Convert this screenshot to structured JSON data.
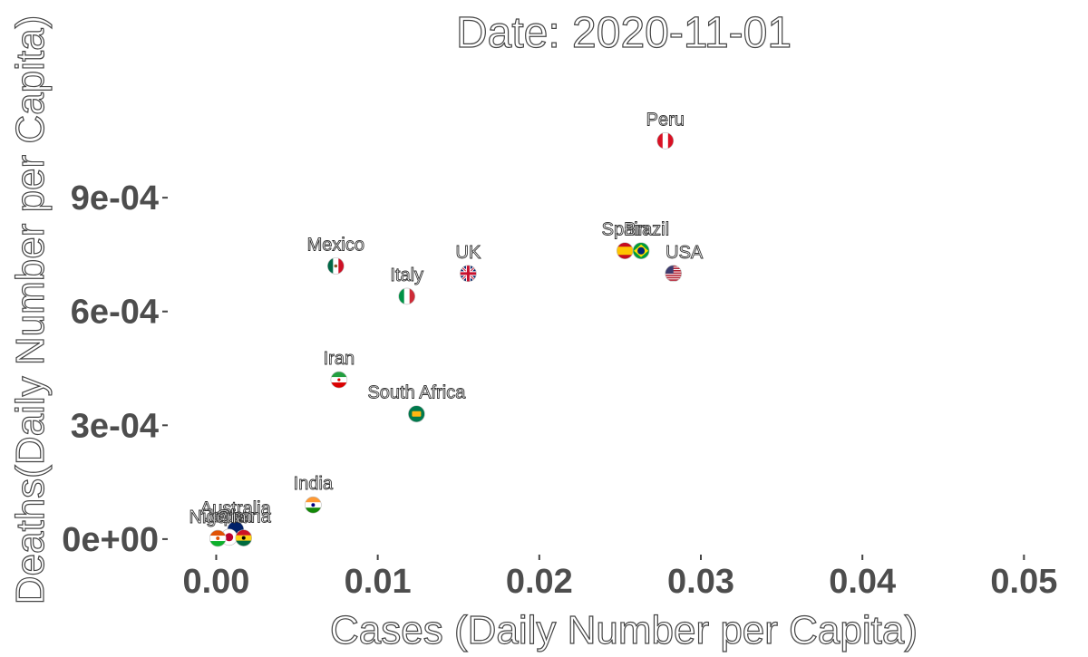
{
  "chart_data": {
    "type": "scatter",
    "title": "Date: 2020-11-01",
    "xlabel": "Cases (Daily Number per Capita)",
    "ylabel": "Deaths(Daily Number per Capita)",
    "xlim": [
      -0.003,
      0.052
    ],
    "ylim": [
      -6e-05,
      0.00123
    ],
    "x_ticks": [
      0.0,
      0.01,
      0.02,
      0.03,
      0.04,
      0.05
    ],
    "x_tick_labels": [
      "0.00",
      "0.01",
      "0.02",
      "0.03",
      "0.04",
      "0.05"
    ],
    "y_ticks": [
      0.0,
      0.0003,
      0.0006,
      0.0009
    ],
    "y_tick_labels": [
      "0e+00",
      "3e-04",
      "6e-04",
      "9e-04"
    ],
    "grid": false,
    "points": [
      {
        "label": "Peru",
        "x": 0.0278,
        "y": 0.00105,
        "flag": "peru",
        "colors": [
          "#d91023",
          "#ffffff"
        ]
      },
      {
        "label": "Spain",
        "x": 0.0253,
        "y": 0.00076,
        "flag": "spain",
        "colors": [
          "#c60b1e",
          "#ffc400"
        ]
      },
      {
        "label": "Brazil",
        "x": 0.0263,
        "y": 0.00076,
        "flag": "brazil",
        "colors": [
          "#009c3b",
          "#ffdf00",
          "#002776"
        ]
      },
      {
        "label": "USA",
        "x": 0.0283,
        "y": 0.0007,
        "flag": "usa",
        "colors": [
          "#b22234",
          "#ffffff",
          "#3c3b6e"
        ]
      },
      {
        "label": "Mexico",
        "x": 0.0074,
        "y": 0.00072,
        "flag": "mexico",
        "colors": [
          "#006847",
          "#ffffff",
          "#ce1126"
        ]
      },
      {
        "label": "UK",
        "x": 0.0156,
        "y": 0.0007,
        "flag": "uk",
        "colors": [
          "#012169",
          "#ffffff",
          "#c8102e"
        ]
      },
      {
        "label": "Italy",
        "x": 0.0118,
        "y": 0.00064,
        "flag": "italy",
        "colors": [
          "#009246",
          "#ffffff",
          "#ce2b37"
        ]
      },
      {
        "label": "Iran",
        "x": 0.0076,
        "y": 0.00042,
        "flag": "iran",
        "colors": [
          "#239f40",
          "#ffffff",
          "#da0000"
        ]
      },
      {
        "label": "South Africa",
        "x": 0.0124,
        "y": 0.00033,
        "flag": "south-africa",
        "colors": [
          "#007a4d",
          "#ffb612",
          "#000000"
        ]
      },
      {
        "label": "India",
        "x": 0.006,
        "y": 9e-05,
        "flag": "india",
        "colors": [
          "#ff9933",
          "#ffffff",
          "#138808"
        ]
      },
      {
        "label": "Australia",
        "x": 0.0012,
        "y": 2.5e-05,
        "flag": "australia",
        "colors": [
          "#012169",
          "#ffffff",
          "#e4002b"
        ]
      },
      {
        "label": "Japan",
        "x": 0.0008,
        "y": 5e-06,
        "flag": "japan",
        "colors": [
          "#ffffff",
          "#bc002d"
        ]
      },
      {
        "label": "Ghana",
        "x": 0.0017,
        "y": 3e-06,
        "flag": "ghana",
        "colors": [
          "#ce1126",
          "#fcd116",
          "#006b3f"
        ]
      },
      {
        "label": "Nigeria",
        "x": 0.0001,
        "y": 2e-06,
        "flag": "niger",
        "colors": [
          "#e05206",
          "#ffffff",
          "#0db02b"
        ]
      }
    ],
    "label_overrides": {
      "Spain": "Spain",
      "Brazil": "Brazil"
    }
  }
}
